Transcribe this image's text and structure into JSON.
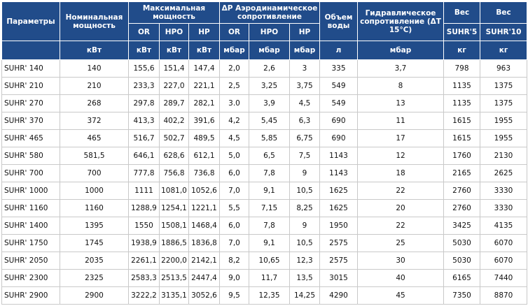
{
  "header": {
    "params": "Параметры",
    "nominal_power": "Номинальная мощность",
    "max_power": "Максимальная мощность",
    "aero_resistance": "ΔP Аэродинамическое сопротивление",
    "water_volume": "Объем воды",
    "hydraulic_resistance": "Гидравлическое сопротивление (ΔT 15°C)",
    "weight1": "Вес",
    "weight2": "Вес",
    "sub": {
      "max_or": "OR",
      "max_hpo": "HPO",
      "max_hp": "HP",
      "aero_or": "OR",
      "aero_hpo": "HPO",
      "aero_hp": "HP",
      "weight1_model": "SUHR'5",
      "weight2_model": "SUHR'10"
    },
    "units": {
      "nominal": "кВт",
      "max_or": "кВт",
      "max_hpo": "кВт",
      "max_hp": "кВт",
      "aero_or": "мбар",
      "aero_hpo": "мбар",
      "aero_hp": "мбар",
      "volume": "л",
      "hydraulic": "мбар",
      "w1": "кг",
      "w2": "кг"
    }
  },
  "rows": [
    [
      "SUHR' 140",
      "140",
      "155,6",
      "151,4",
      "147,4",
      "2,0",
      "2,6",
      "3",
      "335",
      "3,7",
      "798",
      "963"
    ],
    [
      "SUHR' 210",
      "210",
      "233,3",
      "227,0",
      "221,1",
      "2,5",
      "3,25",
      "3,75",
      "549",
      "8",
      "1135",
      "1375"
    ],
    [
      "SUHR' 270",
      "268",
      "297,8",
      "289,7",
      "282,1",
      "3.0",
      "3,9",
      "4,5",
      "549",
      "13",
      "1135",
      "1375"
    ],
    [
      "SUHR' 370",
      "372",
      "413,3",
      "402,2",
      "391,6",
      "4,2",
      "5,45",
      "6,3",
      "690",
      "11",
      "1615",
      "1955"
    ],
    [
      "SUHR' 465",
      "465",
      "516,7",
      "502,7",
      "489,5",
      "4,5",
      "5,85",
      "6,75",
      "690",
      "17",
      "1615",
      "1955"
    ],
    [
      "SUHR' 580",
      "581,5",
      "646,1",
      "628,6",
      "612,1",
      "5,0",
      "6,5",
      "7,5",
      "1143",
      "12",
      "1760",
      "2130"
    ],
    [
      "SUHR' 700",
      "700",
      "777,8",
      "756,8",
      "736,8",
      "6,0",
      "7,8",
      "9",
      "1143",
      "18",
      "2165",
      "2625"
    ],
    [
      "SUHR' 1000",
      "1000",
      "1111",
      "1081,0",
      "1052,6",
      "7,0",
      "9,1",
      "10,5",
      "1625",
      "22",
      "2760",
      "3330"
    ],
    [
      "SUHR' 1160",
      "1160",
      "1288,9",
      "1254,1",
      "1221,1",
      "5,5",
      "7,15",
      "8,25",
      "1625",
      "20",
      "2760",
      "3330"
    ],
    [
      "SUHR' 1400",
      "1395",
      "1550",
      "1508,1",
      "1468,4",
      "6,0",
      "7,8",
      "9",
      "1950",
      "22",
      "3425",
      "4135"
    ],
    [
      "SUHR' 1750",
      "1745",
      "1938,9",
      "1886,5",
      "1836,8",
      "7,0",
      "9,1",
      "10,5",
      "2575",
      "25",
      "5030",
      "6070"
    ],
    [
      "SUHR' 2050",
      "2035",
      "2261,1",
      "2200,0",
      "2142,1",
      "8,2",
      "10,65",
      "12,3",
      "2575",
      "30",
      "5030",
      "6070"
    ],
    [
      "SUHR' 2300",
      "2325",
      "2583,3",
      "2513,5",
      "2447,4",
      "9,0",
      "11,7",
      "13,5",
      "3015",
      "40",
      "6165",
      "7440"
    ],
    [
      "SUHR' 2900",
      "2900",
      "3222,2",
      "3135,1",
      "3052,6",
      "9,5",
      "12,35",
      "14,25",
      "4290",
      "45",
      "7350",
      "8870"
    ]
  ]
}
